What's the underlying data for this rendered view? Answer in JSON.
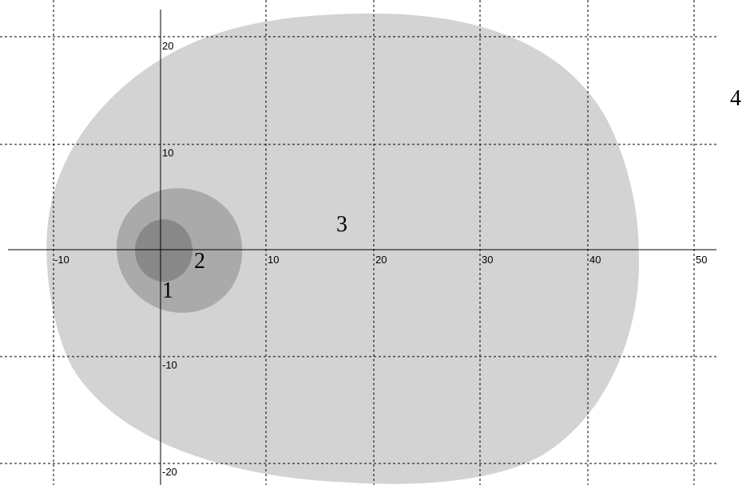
{
  "diagram": {
    "x_ticks": [
      "-10",
      "10",
      "20",
      "30",
      "40",
      "50"
    ],
    "y_ticks": [
      "20",
      "10",
      "-10",
      "-20"
    ],
    "zones": [
      {
        "label": "1",
        "color": "#888888"
      },
      {
        "label": "2",
        "color": "#aaaaaa"
      },
      {
        "label": "3",
        "color": "#d3d3d3"
      },
      {
        "label": "4",
        "color": "#ffffff"
      }
    ],
    "grid": true
  }
}
